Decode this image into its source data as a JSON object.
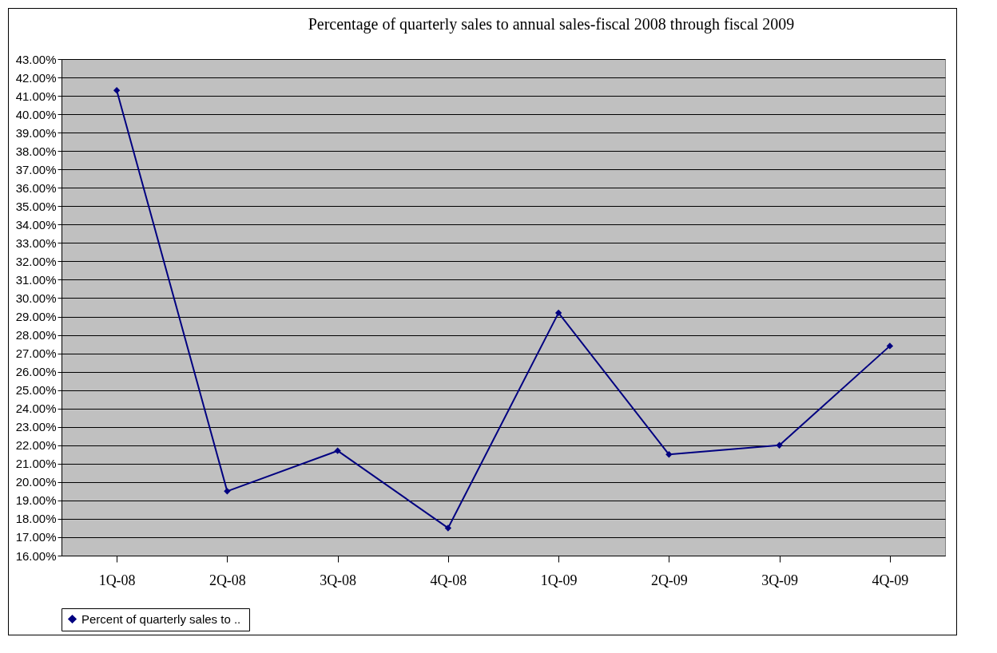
{
  "chart_data": {
    "type": "line",
    "title": "Percentage  of  quarterly sales to annual sales-fiscal 2008 through fiscal 2009",
    "categories": [
      "1Q-08",
      "2Q-08",
      "3Q-08",
      "4Q-08",
      "1Q-09",
      "2Q-09",
      "3Q-09",
      "4Q-09"
    ],
    "series": [
      {
        "name": "Percent of quarterly  sales to ..",
        "color": "#000080",
        "values": [
          41.3,
          19.5,
          21.7,
          17.5,
          29.2,
          21.5,
          22.0,
          27.4
        ]
      }
    ],
    "ylim": [
      16,
      43
    ],
    "yticks": [
      {
        "value": 16,
        "label": "16.00%"
      },
      {
        "value": 17,
        "label": "17.00%"
      },
      {
        "value": 18,
        "label": "18.00%"
      },
      {
        "value": 19,
        "label": "19.00%"
      },
      {
        "value": 20,
        "label": "20.00%"
      },
      {
        "value": 21,
        "label": "21.00%"
      },
      {
        "value": 22,
        "label": "22.00%"
      },
      {
        "value": 23,
        "label": "23.00%"
      },
      {
        "value": 24,
        "label": "24.00%"
      },
      {
        "value": 25,
        "label": "25.00%"
      },
      {
        "value": 26,
        "label": "26.00%"
      },
      {
        "value": 27,
        "label": "27.00%"
      },
      {
        "value": 28,
        "label": "28.00%"
      },
      {
        "value": 29,
        "label": "29.00%"
      },
      {
        "value": 30,
        "label": "30.00%"
      },
      {
        "value": 31,
        "label": "31.00%"
      },
      {
        "value": 32,
        "label": "32.00%"
      },
      {
        "value": 33,
        "label": "33.00%"
      },
      {
        "value": 34,
        "label": "34.00%"
      },
      {
        "value": 35,
        "label": "35.00%"
      },
      {
        "value": 36,
        "label": "36.00%"
      },
      {
        "value": 37,
        "label": "37.00%"
      },
      {
        "value": 38,
        "label": "38.00%"
      },
      {
        "value": 39,
        "label": "39.00%"
      },
      {
        "value": 40,
        "label": "40.00%"
      },
      {
        "value": 41,
        "label": "41.00%"
      },
      {
        "value": 42,
        "label": "42.00%"
      },
      {
        "value": 43,
        "label": "43.00%"
      }
    ],
    "grid": "y",
    "legend": "bottom",
    "marker": "diamond",
    "line_style": "solid"
  }
}
